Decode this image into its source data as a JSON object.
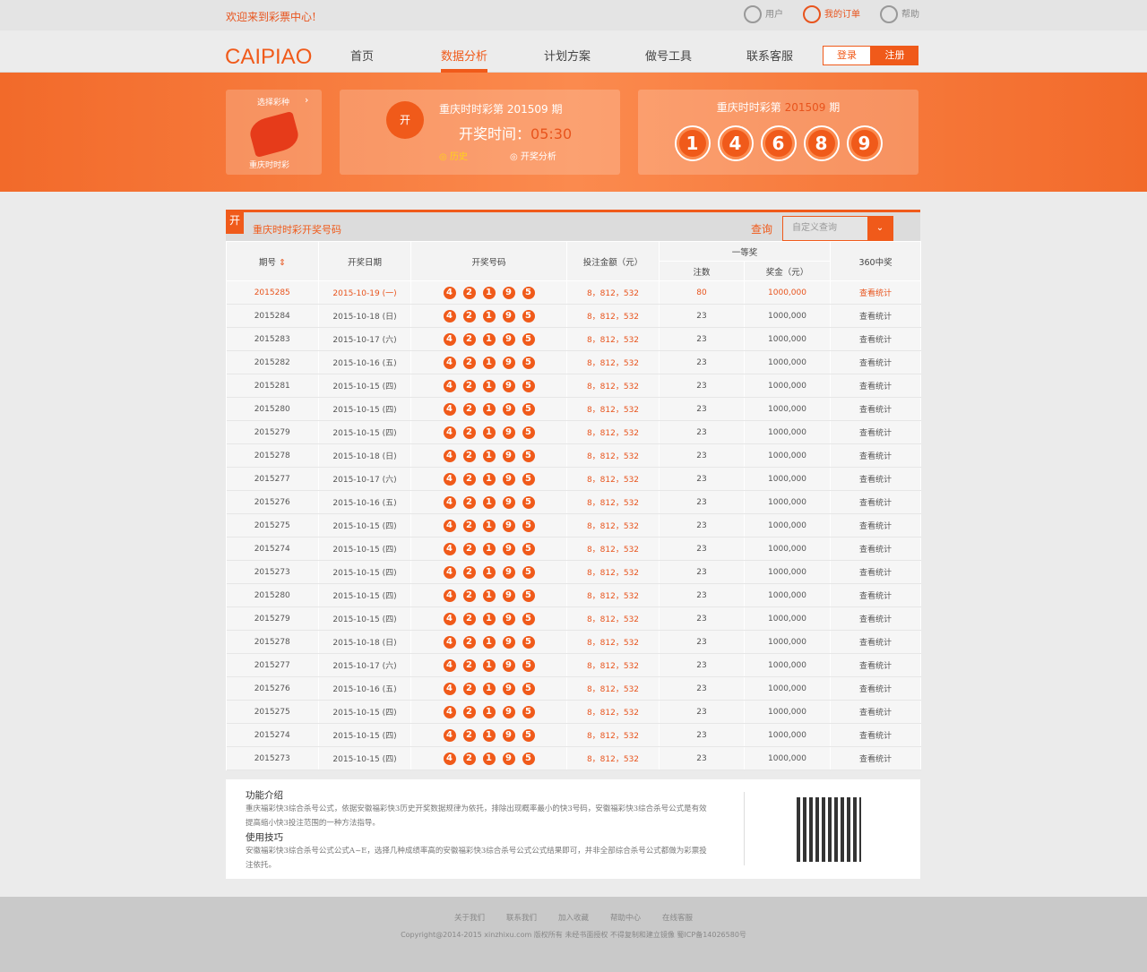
{
  "topbar": {
    "welcome": "欢迎来到彩票中心!",
    "links": [
      {
        "icon": "user-icon",
        "label": "用户"
      },
      {
        "icon": "order-icon",
        "label": "我的订单"
      },
      {
        "icon": "help-icon",
        "label": "帮助"
      }
    ]
  },
  "nav": {
    "logo": "CAIPIAO",
    "items": [
      "首页",
      "数据分析",
      "计划方案",
      "做号工具",
      "联系客服"
    ],
    "active": 1,
    "login": "登录",
    "register": "注册"
  },
  "banner": {
    "select_label": "选择彩种",
    "lottery_name": "重庆时时彩",
    "draw_title": "重庆时时彩第 201509 期",
    "time_label": "开奖时间：",
    "time_value": "05:30",
    "history": "历史",
    "analysis": "开奖分析",
    "result_prefix": "重庆时时彩第 ",
    "result_issue": "201509",
    "result_suffix": " 期",
    "balls": [
      "1",
      "4",
      "6",
      "8",
      "9"
    ],
    "trophy_char": "开"
  },
  "panel": {
    "badge": "开",
    "title": "重庆时时彩开奖号码",
    "query_label": "查询",
    "query_placeholder": "自定义查询",
    "headers": {
      "issue": "期号",
      "date": "开奖日期",
      "numbers": "开奖号码",
      "amount": "投注金额（元）",
      "first": "一等奖",
      "count": "注数",
      "prize": "奖金（元）",
      "stat": "360中奖"
    },
    "rows": [
      [
        "2015285",
        "2015-10-19 (一)",
        "80"
      ],
      [
        "2015284",
        "2015-10-18 (日)",
        "23"
      ],
      [
        "2015283",
        "2015-10-17 (六)",
        "23"
      ],
      [
        "2015282",
        "2015-10-16 (五)",
        "23"
      ],
      [
        "2015281",
        "2015-10-15 (四)",
        "23"
      ],
      [
        "2015280",
        "2015-10-15 (四)",
        "23"
      ],
      [
        "2015279",
        "2015-10-15 (四)",
        "23"
      ],
      [
        "2015278",
        "2015-10-18 (日)",
        "23"
      ],
      [
        "2015277",
        "2015-10-17 (六)",
        "23"
      ],
      [
        "2015276",
        "2015-10-16 (五)",
        "23"
      ],
      [
        "2015275",
        "2015-10-15 (四)",
        "23"
      ],
      [
        "2015274",
        "2015-10-15 (四)",
        "23"
      ],
      [
        "2015273",
        "2015-10-15 (四)",
        "23"
      ],
      [
        "2015280",
        "2015-10-15 (四)",
        "23"
      ],
      [
        "2015279",
        "2015-10-15 (四)",
        "23"
      ],
      [
        "2015278",
        "2015-10-18 (日)",
        "23"
      ],
      [
        "2015277",
        "2015-10-17 (六)",
        "23"
      ],
      [
        "2015276",
        "2015-10-16 (五)",
        "23"
      ],
      [
        "2015275",
        "2015-10-15 (四)",
        "23"
      ],
      [
        "2015274",
        "2015-10-15 (四)",
        "23"
      ],
      [
        "2015273",
        "2015-10-15 (四)",
        "23"
      ]
    ],
    "row_numbers": [
      "4",
      "2",
      "1",
      "9",
      "5"
    ],
    "row_amount": "8，812，532",
    "row_prize": "1000,000",
    "row_link": "查看统计"
  },
  "info": {
    "h1": "功能介绍",
    "p1": "重庆福彩快3综合杀号公式，依据安徽福彩快3历史开奖数据规律为依托，排除出现概率最小的快3号码，安徽福彩快3综合杀号公式是有效提高缩小快3投注范围的一种方法指导。",
    "h2": "使用技巧",
    "p2": "安徽福彩快3综合杀号公式公式A~E，选择几种成绩率高的安徽福彩快3综合杀号公式公式结果即可，并非全部综合杀号公式都做为彩票投注依托。"
  },
  "footer": {
    "links": [
      "关于我们",
      "联系我们",
      "加入收藏",
      "帮助中心",
      "在线客服"
    ],
    "copyright": "Copyright@2014-2015 xinzhixu.com 版权所有 未经书面授权 不得复制和建立镜像 蜀ICP备14026580号"
  },
  "colors": {
    "accent": "#f05a1a"
  }
}
